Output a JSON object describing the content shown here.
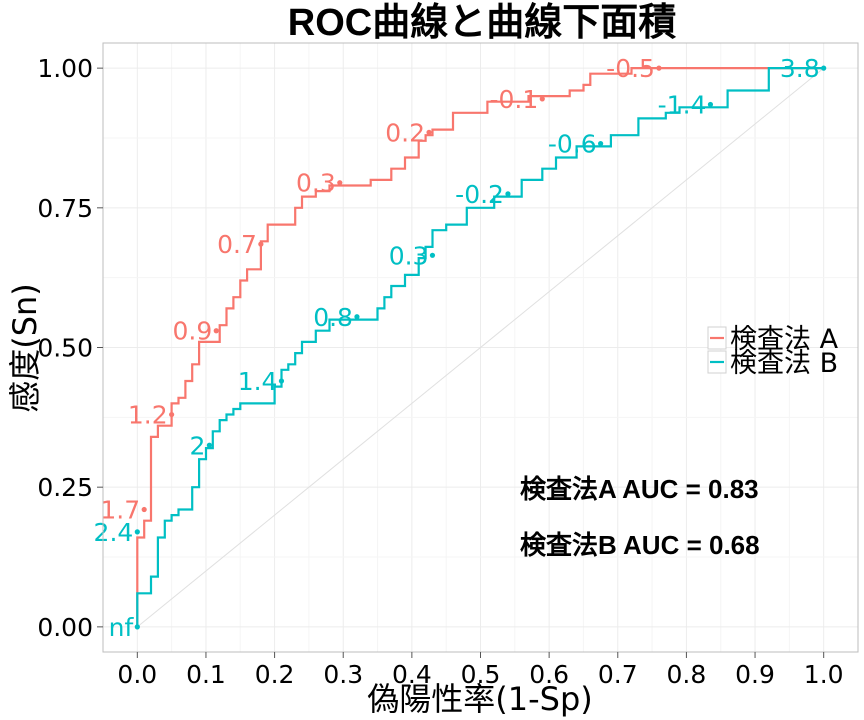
{
  "chart_data": {
    "type": "line",
    "title": "ROC曲線と曲線下面積",
    "xlabel": "偽陽性率(1-Sp)",
    "ylabel": "感度(Sn)",
    "xlim": [
      -0.05,
      1.05
    ],
    "ylim": [
      -0.045,
      1.045
    ],
    "x_ticks": [
      "0.0",
      "0.1",
      "0.2",
      "0.3",
      "0.4",
      "0.5",
      "0.6",
      "0.7",
      "0.8",
      "0.9",
      "1.0"
    ],
    "y_ticks": [
      "0.00",
      "0.25",
      "0.50",
      "0.75",
      "1.00"
    ],
    "grid": true,
    "legend_position": "right",
    "reference_line": {
      "from": [
        0,
        0
      ],
      "to": [
        1,
        1
      ],
      "color": "#e0e0e0"
    },
    "series": [
      {
        "name": "検査法 A",
        "color": "#F8766D",
        "auc_text": "検査法A AUC = 0.83",
        "steps": [
          [
            0,
            0
          ],
          [
            0,
            0.06
          ],
          [
            0,
            0.11
          ],
          [
            0,
            0.16
          ],
          [
            0.01,
            0.16
          ],
          [
            0.01,
            0.19
          ],
          [
            0.02,
            0.19
          ],
          [
            0.02,
            0.21
          ],
          [
            0.02,
            0.34
          ],
          [
            0.03,
            0.34
          ],
          [
            0.03,
            0.36
          ],
          [
            0.05,
            0.36
          ],
          [
            0.05,
            0.4
          ],
          [
            0.06,
            0.4
          ],
          [
            0.06,
            0.41
          ],
          [
            0.07,
            0.41
          ],
          [
            0.07,
            0.44
          ],
          [
            0.08,
            0.44
          ],
          [
            0.08,
            0.47
          ],
          [
            0.09,
            0.47
          ],
          [
            0.09,
            0.51
          ],
          [
            0.12,
            0.51
          ],
          [
            0.12,
            0.54
          ],
          [
            0.13,
            0.54
          ],
          [
            0.13,
            0.57
          ],
          [
            0.14,
            0.57
          ],
          [
            0.14,
            0.59
          ],
          [
            0.15,
            0.59
          ],
          [
            0.15,
            0.62
          ],
          [
            0.16,
            0.62
          ],
          [
            0.16,
            0.64
          ],
          [
            0.18,
            0.64
          ],
          [
            0.18,
            0.67
          ],
          [
            0.18,
            0.69
          ],
          [
            0.19,
            0.69
          ],
          [
            0.19,
            0.72
          ],
          [
            0.23,
            0.72
          ],
          [
            0.23,
            0.75
          ],
          [
            0.24,
            0.75
          ],
          [
            0.24,
            0.77
          ],
          [
            0.26,
            0.77
          ],
          [
            0.26,
            0.78
          ],
          [
            0.28,
            0.78
          ],
          [
            0.28,
            0.79
          ],
          [
            0.34,
            0.79
          ],
          [
            0.34,
            0.8
          ],
          [
            0.37,
            0.8
          ],
          [
            0.37,
            0.82
          ],
          [
            0.39,
            0.82
          ],
          [
            0.39,
            0.84
          ],
          [
            0.41,
            0.84
          ],
          [
            0.41,
            0.87
          ],
          [
            0.42,
            0.87
          ],
          [
            0.42,
            0.88
          ],
          [
            0.43,
            0.88
          ],
          [
            0.43,
            0.89
          ],
          [
            0.46,
            0.89
          ],
          [
            0.46,
            0.92
          ],
          [
            0.51,
            0.92
          ],
          [
            0.51,
            0.94
          ],
          [
            0.57,
            0.94
          ],
          [
            0.57,
            0.95
          ],
          [
            0.63,
            0.95
          ],
          [
            0.63,
            0.96
          ],
          [
            0.65,
            0.96
          ],
          [
            0.65,
            0.97
          ],
          [
            0.66,
            0.97
          ],
          [
            0.66,
            0.99
          ],
          [
            0.72,
            0.99
          ],
          [
            0.72,
            1.0
          ],
          [
            0.78,
            1.0
          ],
          [
            0.92,
            1.0
          ],
          [
            1.0,
            1.0
          ]
        ],
        "cutoffs": [
          {
            "label": "1.7",
            "x": 0.01,
            "y": 0.21
          },
          {
            "label": "1.2",
            "x": 0.05,
            "y": 0.38
          },
          {
            "label": "0.9",
            "x": 0.115,
            "y": 0.53
          },
          {
            "label": "0.7",
            "x": 0.18,
            "y": 0.685
          },
          {
            "label": "0.3",
            "x": 0.295,
            "y": 0.795
          },
          {
            "label": "0.2",
            "x": 0.425,
            "y": 0.885
          },
          {
            "label": "-0.1",
            "x": 0.59,
            "y": 0.945
          },
          {
            "label": "-0.5",
            "x": 0.76,
            "y": 1.0
          }
        ]
      },
      {
        "name": "検査法 B",
        "color": "#00BFC4",
        "auc_text": "検査法B AUC = 0.68",
        "steps": [
          [
            0,
            0
          ],
          [
            0,
            0.06
          ],
          [
            0.02,
            0.06
          ],
          [
            0.02,
            0.09
          ],
          [
            0.03,
            0.09
          ],
          [
            0.03,
            0.16
          ],
          [
            0.04,
            0.16
          ],
          [
            0.04,
            0.19
          ],
          [
            0.05,
            0.19
          ],
          [
            0.05,
            0.2
          ],
          [
            0.06,
            0.2
          ],
          [
            0.06,
            0.21
          ],
          [
            0.08,
            0.21
          ],
          [
            0.08,
            0.25
          ],
          [
            0.09,
            0.25
          ],
          [
            0.09,
            0.3
          ],
          [
            0.1,
            0.3
          ],
          [
            0.1,
            0.32
          ],
          [
            0.11,
            0.32
          ],
          [
            0.11,
            0.35
          ],
          [
            0.12,
            0.35
          ],
          [
            0.12,
            0.37
          ],
          [
            0.13,
            0.37
          ],
          [
            0.13,
            0.38
          ],
          [
            0.14,
            0.38
          ],
          [
            0.14,
            0.39
          ],
          [
            0.15,
            0.39
          ],
          [
            0.15,
            0.4
          ],
          [
            0.2,
            0.4
          ],
          [
            0.2,
            0.43
          ],
          [
            0.21,
            0.43
          ],
          [
            0.21,
            0.46
          ],
          [
            0.22,
            0.46
          ],
          [
            0.22,
            0.47
          ],
          [
            0.23,
            0.47
          ],
          [
            0.23,
            0.49
          ],
          [
            0.24,
            0.49
          ],
          [
            0.24,
            0.51
          ],
          [
            0.26,
            0.51
          ],
          [
            0.26,
            0.53
          ],
          [
            0.28,
            0.53
          ],
          [
            0.28,
            0.55
          ],
          [
            0.35,
            0.55
          ],
          [
            0.35,
            0.57
          ],
          [
            0.36,
            0.57
          ],
          [
            0.36,
            0.59
          ],
          [
            0.37,
            0.59
          ],
          [
            0.37,
            0.61
          ],
          [
            0.39,
            0.61
          ],
          [
            0.39,
            0.63
          ],
          [
            0.41,
            0.63
          ],
          [
            0.41,
            0.66
          ],
          [
            0.42,
            0.66
          ],
          [
            0.42,
            0.68
          ],
          [
            0.43,
            0.68
          ],
          [
            0.43,
            0.71
          ],
          [
            0.45,
            0.71
          ],
          [
            0.45,
            0.72
          ],
          [
            0.48,
            0.72
          ],
          [
            0.48,
            0.75
          ],
          [
            0.52,
            0.75
          ],
          [
            0.52,
            0.77
          ],
          [
            0.56,
            0.77
          ],
          [
            0.56,
            0.8
          ],
          [
            0.59,
            0.8
          ],
          [
            0.59,
            0.82
          ],
          [
            0.61,
            0.82
          ],
          [
            0.61,
            0.84
          ],
          [
            0.64,
            0.84
          ],
          [
            0.64,
            0.86
          ],
          [
            0.69,
            0.86
          ],
          [
            0.69,
            0.88
          ],
          [
            0.73,
            0.88
          ],
          [
            0.73,
            0.91
          ],
          [
            0.77,
            0.91
          ],
          [
            0.77,
            0.92
          ],
          [
            0.79,
            0.92
          ],
          [
            0.79,
            0.93
          ],
          [
            0.86,
            0.93
          ],
          [
            0.86,
            0.96
          ],
          [
            0.92,
            0.96
          ],
          [
            0.92,
            1.0
          ],
          [
            1.0,
            1.0
          ]
        ],
        "cutoffs": [
          {
            "label": "nf",
            "x": 0.0,
            "y": 0.0
          },
          {
            "label": "2.4",
            "x": 0.0,
            "y": 0.17
          },
          {
            "label": "2",
            "x": 0.105,
            "y": 0.325
          },
          {
            "label": "1.4",
            "x": 0.21,
            "y": 0.44
          },
          {
            "label": "0.8",
            "x": 0.32,
            "y": 0.555
          },
          {
            "label": "0.3",
            "x": 0.43,
            "y": 0.665
          },
          {
            "label": "-0.2",
            "x": 0.54,
            "y": 0.775
          },
          {
            "label": "-0.6",
            "x": 0.675,
            "y": 0.865
          },
          {
            "label": "-1.4",
            "x": 0.835,
            "y": 0.935
          },
          {
            "label": "3.8",
            "x": 1.0,
            "y": 1.0
          }
        ]
      }
    ]
  }
}
